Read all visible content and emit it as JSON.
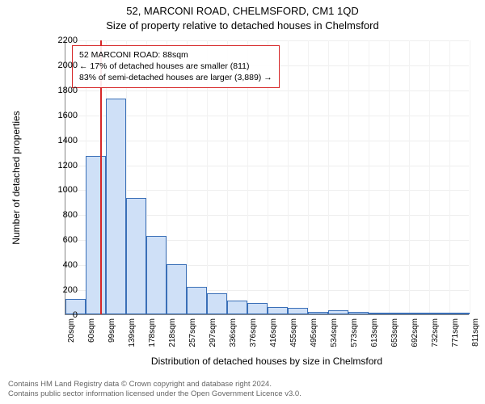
{
  "titles": {
    "line1": "52, MARCONI ROAD, CHELMSFORD, CM1 1QD",
    "line2": "Size of property relative to detached houses in Chelmsford"
  },
  "axes": {
    "ylabel": "Number of detached properties",
    "xlabel": "Distribution of detached houses by size in Chelmsford",
    "ylim": [
      0,
      2200
    ],
    "yticks": [
      0,
      200,
      400,
      600,
      800,
      1000,
      1200,
      1400,
      1600,
      1800,
      2000,
      2200
    ],
    "xticks": [
      "20sqm",
      "60sqm",
      "99sqm",
      "139sqm",
      "178sqm",
      "218sqm",
      "257sqm",
      "297sqm",
      "336sqm",
      "376sqm",
      "416sqm",
      "455sqm",
      "495sqm",
      "534sqm",
      "573sqm",
      "613sqm",
      "653sqm",
      "692sqm",
      "732sqm",
      "771sqm",
      "811sqm"
    ],
    "label_fontsize": 12,
    "tick_fontsize": 11,
    "grid_color": "#eeeeee",
    "axis_color": "#888888"
  },
  "chart": {
    "type": "histogram",
    "bar_fill": "#cfe0f7",
    "bar_border": "#3a6fb7",
    "background_color": "#ffffff",
    "values": [
      120,
      1270,
      1730,
      930,
      630,
      400,
      220,
      170,
      110,
      90,
      60,
      50,
      20,
      30,
      20,
      10,
      10,
      10,
      10,
      10
    ],
    "marker": {
      "value_sqm": 88,
      "color": "#d62728",
      "fraction_x": 0.086
    }
  },
  "info_box": {
    "line1": "52 MARCONI ROAD: 88sqm",
    "line2": "← 17% of detached houses are smaller (811)",
    "line3": "83% of semi-detached houses are larger (3,889) →",
    "border_color": "#d62728",
    "fontsize": 10.5
  },
  "footer": {
    "line1": "Contains HM Land Registry data © Crown copyright and database right 2024.",
    "line2": "Contains public sector information licensed under the Open Government Licence v3.0.",
    "color": "#666666",
    "fontsize": 9.5
  }
}
